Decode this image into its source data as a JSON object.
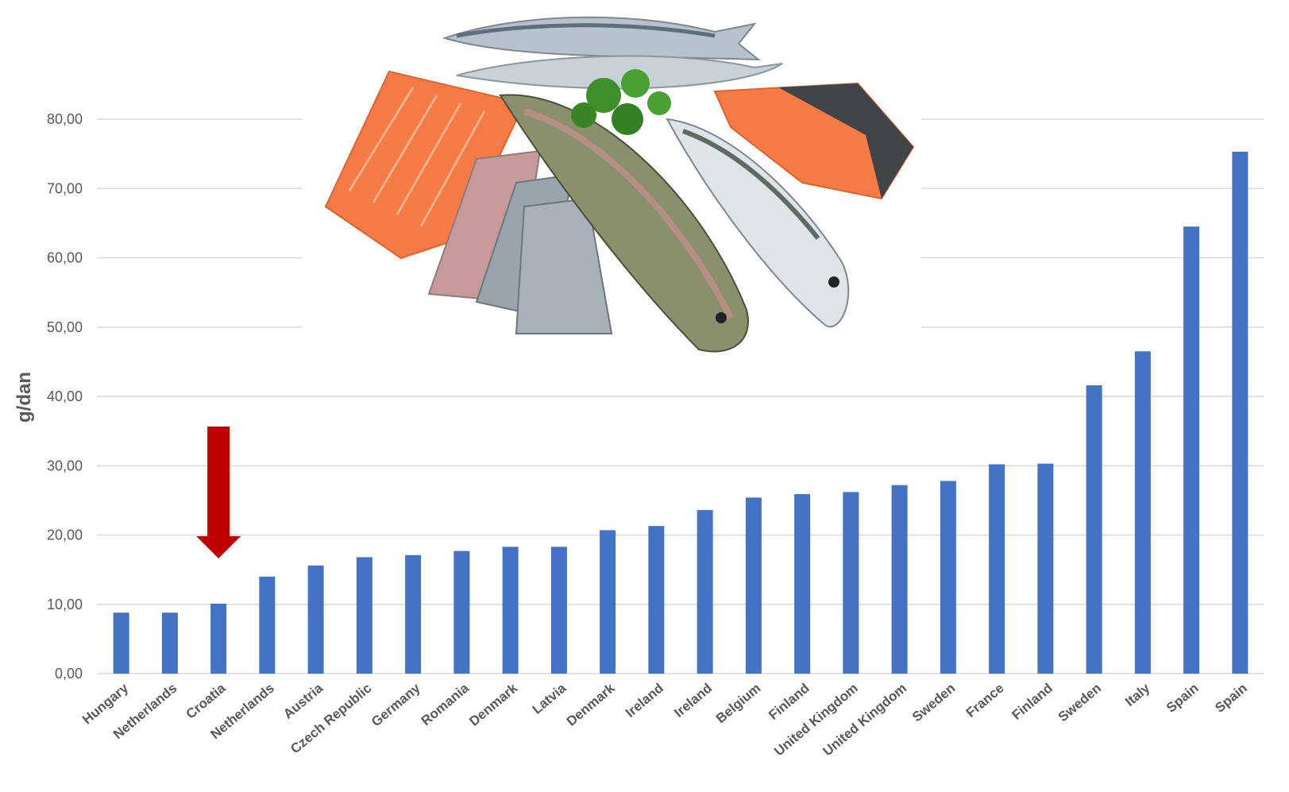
{
  "chart_data": {
    "type": "bar",
    "title": "",
    "xlabel": "",
    "ylabel": "g/dan",
    "ylim": [
      0,
      80
    ],
    "yticks": [
      "0,00",
      "10,00",
      "20,00",
      "30,00",
      "40,00",
      "50,00",
      "60,00",
      "70,00",
      "80,00"
    ],
    "grid": true,
    "legend": "none",
    "categories": [
      "Hungary",
      "Netherlands",
      "Croatia",
      "Netherlands",
      "Austria",
      "Czech Republic",
      "Germany",
      "Romania",
      "Denmark",
      "Latvia",
      "Denmark",
      "Ireland",
      "Ireland",
      "Belgium",
      "Finland",
      "United Kingdom",
      "United Kingdom",
      "Sweden",
      "France",
      "Finland",
      "Sweden",
      "Italy",
      "Spain",
      "Spain"
    ],
    "values": [
      8.8,
      8.8,
      10.1,
      14.0,
      15.6,
      16.8,
      17.1,
      17.7,
      18.3,
      18.3,
      20.7,
      21.3,
      23.6,
      25.4,
      25.9,
      26.2,
      27.2,
      27.8,
      30.2,
      30.3,
      41.6,
      46.5,
      64.5,
      75.3
    ],
    "highlight_category_index": 2,
    "colors": {
      "bar": "#4472c4",
      "grid": "#d9d9d9",
      "arrow": "#c00000",
      "text": "#595959"
    },
    "decoration": "fish-photo-illustration"
  }
}
